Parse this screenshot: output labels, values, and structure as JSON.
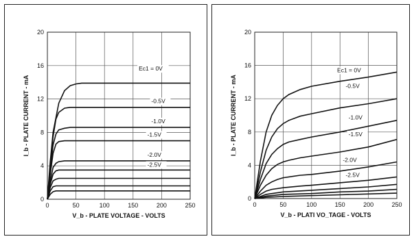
{
  "chart_data": [
    {
      "type": "line",
      "title": "",
      "xlabel": "V_b - PLATE VOLTAGE - VOLTS",
      "ylabel": "I_b - PLATE CURRENT - mA",
      "xlim": [
        0,
        250
      ],
      "ylim": [
        0,
        20
      ],
      "x_ticks": [
        "0",
        "50",
        "100",
        "150",
        "200",
        "250"
      ],
      "y_ticks": [
        "0",
        "4",
        "8",
        "12",
        "16",
        "20"
      ],
      "grid": true,
      "series": [
        {
          "name": "Ec1 = 0V",
          "x": [
            0,
            5,
            10,
            20,
            30,
            40,
            50,
            60,
            80,
            100,
            150,
            200,
            250
          ],
          "y": [
            0,
            4.5,
            8,
            11.5,
            13,
            13.6,
            13.8,
            13.9,
            13.9,
            13.9,
            13.9,
            13.9,
            13.9
          ]
        },
        {
          "name": "-0.5V",
          "x": [
            0,
            5,
            10,
            15,
            20,
            30,
            40,
            60,
            100,
            150,
            200,
            250
          ],
          "y": [
            0,
            4,
            7.5,
            9.6,
            10.4,
            10.9,
            11,
            11,
            11,
            11,
            11,
            11
          ]
        },
        {
          "name": "-1.0V",
          "x": [
            0,
            5,
            10,
            15,
            20,
            30,
            40,
            100,
            150,
            200,
            250
          ],
          "y": [
            0,
            3.5,
            6.5,
            7.8,
            8.3,
            8.5,
            8.6,
            8.6,
            8.6,
            8.6,
            8.6
          ]
        },
        {
          "name": "-1.5V",
          "x": [
            0,
            5,
            10,
            15,
            20,
            30,
            50,
            100,
            150,
            200,
            250
          ],
          "y": [
            0,
            3,
            5.5,
            6.6,
            6.9,
            7.0,
            7.0,
            7.0,
            7.0,
            7.0,
            7.0
          ]
        },
        {
          "name": "-2.0V",
          "x": [
            0,
            5,
            10,
            15,
            20,
            30,
            100,
            150,
            200,
            250
          ],
          "y": [
            0,
            2.2,
            3.8,
            4.3,
            4.5,
            4.6,
            4.6,
            4.6,
            4.6,
            4.6
          ]
        },
        {
          "name": "-2.5V",
          "x": [
            0,
            5,
            10,
            15,
            20,
            100,
            150,
            200,
            250
          ],
          "y": [
            0,
            1.8,
            3,
            3.4,
            3.5,
            3.5,
            3.5,
            3.5,
            3.5
          ]
        },
        {
          "name": "",
          "x": [
            0,
            5,
            10,
            15,
            20,
            100,
            250
          ],
          "y": [
            0,
            1.4,
            2.2,
            2.4,
            2.5,
            2.5,
            2.5
          ]
        },
        {
          "name": "",
          "x": [
            0,
            5,
            10,
            15,
            100,
            250
          ],
          "y": [
            0,
            1.0,
            1.5,
            1.6,
            1.6,
            1.6
          ]
        },
        {
          "name": "",
          "x": [
            0,
            5,
            10,
            15,
            100,
            250
          ],
          "y": [
            0,
            0.6,
            0.9,
            1.0,
            1.0,
            1.0
          ]
        }
      ],
      "labels": [
        {
          "text": "Ec1 = 0V",
          "x": 160,
          "y": 15.4
        },
        {
          "text": "-0.5V",
          "x": 182,
          "y": 11.5
        },
        {
          "text": "-1.0V",
          "x": 182,
          "y": 9.1
        },
        {
          "text": "-1.5V",
          "x": 175,
          "y": 7.5
        },
        {
          "text": "-2.0V",
          "x": 175,
          "y": 5.1
        },
        {
          "text": "-2.5V",
          "x": 175,
          "y": 3.9
        }
      ]
    },
    {
      "type": "line",
      "title": "",
      "xlabel": "V_b - PLATI VO_TAGE - VOLTS",
      "ylabel": "I_b - PLATE CURRENT - mA",
      "xlim": [
        0,
        250
      ],
      "ylim": [
        0,
        20
      ],
      "x_ticks": [
        "0",
        "50",
        "100",
        "150",
        "200",
        "250"
      ],
      "y_ticks": [
        "0",
        "4",
        "8",
        "12",
        "16",
        "20"
      ],
      "grid": true,
      "series": [
        {
          "name": "Ec1 = 0V",
          "x": [
            0,
            10,
            20,
            30,
            40,
            50,
            60,
            80,
            100,
            150,
            200,
            250
          ],
          "y": [
            0,
            4.5,
            8,
            10,
            11.2,
            12,
            12.5,
            13.1,
            13.5,
            14.1,
            14.6,
            15.2
          ]
        },
        {
          "name": "-0.5V",
          "x": [
            0,
            10,
            20,
            30,
            40,
            50,
            60,
            80,
            100,
            150,
            200,
            250
          ],
          "y": [
            0,
            3.2,
            5.8,
            7.4,
            8.4,
            9,
            9.4,
            9.9,
            10.2,
            10.9,
            11.4,
            12
          ]
        },
        {
          "name": "-1.0V",
          "x": [
            0,
            10,
            20,
            30,
            40,
            50,
            60,
            80,
            100,
            150,
            200,
            250
          ],
          "y": [
            0,
            2.3,
            4.2,
            5.3,
            6.0,
            6.5,
            6.8,
            7.1,
            7.4,
            8.0,
            8.7,
            9.4
          ]
        },
        {
          "name": "-1.5V",
          "x": [
            0,
            10,
            20,
            30,
            40,
            50,
            60,
            80,
            100,
            150,
            200,
            250
          ],
          "y": [
            0,
            1.6,
            2.8,
            3.6,
            4.1,
            4.4,
            4.6,
            4.9,
            5.1,
            5.6,
            6.2,
            7.1
          ]
        },
        {
          "name": "-2.0V",
          "x": [
            0,
            10,
            20,
            30,
            40,
            50,
            60,
            80,
            100,
            150,
            200,
            250
          ],
          "y": [
            0,
            0.9,
            1.6,
            2.0,
            2.3,
            2.5,
            2.6,
            2.8,
            2.9,
            3.3,
            3.8,
            4.4
          ]
        },
        {
          "name": "-2.5V",
          "x": [
            0,
            10,
            20,
            30,
            50,
            80,
            100,
            150,
            200,
            250
          ],
          "y": [
            0,
            0.5,
            0.9,
            1.1,
            1.3,
            1.5,
            1.6,
            1.9,
            2.2,
            2.6
          ]
        },
        {
          "name": "",
          "x": [
            0,
            20,
            50,
            100,
            150,
            200,
            250
          ],
          "y": [
            0,
            0.5,
            0.8,
            1.0,
            1.2,
            1.4,
            1.7
          ]
        },
        {
          "name": "",
          "x": [
            0,
            20,
            50,
            100,
            150,
            200,
            250
          ],
          "y": [
            0,
            0.3,
            0.5,
            0.6,
            0.8,
            0.9,
            1.1
          ]
        },
        {
          "name": "",
          "x": [
            0,
            20,
            50,
            100,
            150,
            200,
            250
          ],
          "y": [
            0,
            0.15,
            0.25,
            0.35,
            0.45,
            0.55,
            0.65
          ]
        }
      ],
      "labels": [
        {
          "text": "Ec1 = 0V",
          "x": 145,
          "y": 15.2
        },
        {
          "text": "-0.5V",
          "x": 160,
          "y": 13.3
        },
        {
          "text": "-1.0V",
          "x": 165,
          "y": 9.5
        },
        {
          "text": "-1.5V",
          "x": 165,
          "y": 7.5
        },
        {
          "text": "-2.0V",
          "x": 155,
          "y": 4.4
        },
        {
          "text": "-2.5V",
          "x": 160,
          "y": 2.6
        }
      ]
    }
  ]
}
